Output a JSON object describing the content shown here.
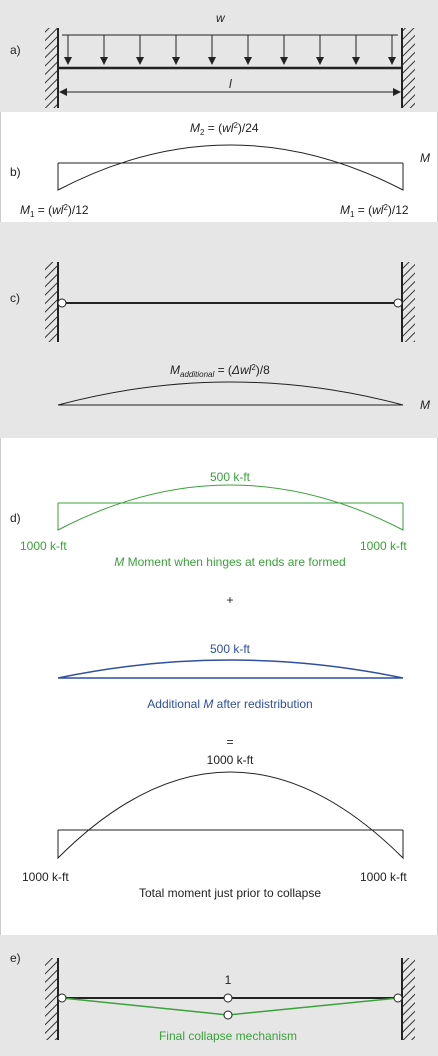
{
  "a": {
    "tag": "a)",
    "load": "w",
    "span": "l"
  },
  "b": {
    "tag": "b)",
    "mid": [
      "M",
      "2",
      " = (",
      "wl",
      "2",
      ")/24"
    ],
    "left": [
      "M",
      "1",
      " = (",
      "wl",
      "2",
      ")/12"
    ],
    "right": [
      "M",
      "1",
      " = (",
      "wl",
      "2",
      ")/12"
    ],
    "axis": "M"
  },
  "c": {
    "tag": "c)",
    "mid": [
      "M",
      "additional",
      " = (",
      "Δwl",
      "2",
      ")/8"
    ],
    "axis": "M"
  },
  "d": {
    "tag": "d)",
    "green": {
      "mid": "500 k-ft",
      "left": "1000 k-ft",
      "right": "1000 k-ft",
      "caption": [
        "M",
        " Moment when hinges at ends are formed"
      ]
    },
    "plus": "+",
    "blue": {
      "mid": "500 k-ft",
      "caption": [
        "Additional ",
        "M",
        " after redistribution"
      ]
    },
    "equals": "=",
    "black": {
      "mid": "1000 k-ft",
      "left": "1000 k-ft",
      "right": "1000 k-ft",
      "caption": "Total moment just prior to collapse"
    }
  },
  "e": {
    "tag": "e)",
    "hinge": "1",
    "caption": "Final collapse mechanism"
  }
}
